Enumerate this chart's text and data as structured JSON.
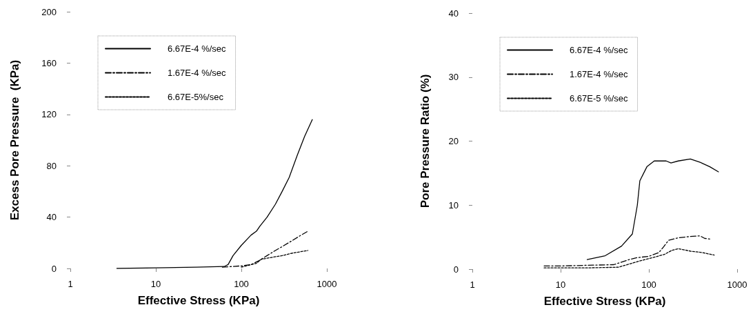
{
  "chart_data": [
    {
      "type": "line",
      "xlabel": "Effective Stress (KPa)",
      "ylabel": "Excess Pore Pressure  (KPa)",
      "log": "x",
      "xlim": [
        1,
        1000
      ],
      "xticks": [
        1,
        10,
        100,
        1000
      ],
      "ylim": [
        0,
        200
      ],
      "yticks": [
        0,
        40,
        80,
        120,
        160,
        200
      ],
      "legend": "top left",
      "grid": false,
      "marker": "none",
      "series": [
        {
          "name": "6.67E-4 %/sec",
          "color": "#000000",
          "line_style": "solid",
          "x": [
            3.5,
            10,
            30,
            63,
            70,
            80,
            100,
            130,
            150,
            165,
            200,
            250,
            300,
            363,
            450,
            550,
            676
          ],
          "values": [
            0,
            0.5,
            1,
            1.5,
            3,
            10,
            18,
            26,
            29,
            33,
            40,
            50,
            60,
            71,
            88,
            103,
            116
          ]
        },
        {
          "name": "1.67E-4 %/sec",
          "color": "#000000",
          "line_style": "dashdot",
          "x": [
            60,
            100,
            130,
            160,
            200,
            250,
            300,
            400,
            500,
            600
          ],
          "values": [
            1,
            2,
            3,
            6,
            10,
            14,
            17,
            22,
            26,
            29
          ]
        },
        {
          "name": "6.67E-5%/sec",
          "color": "#000000",
          "line_style": "dashed",
          "x": [
            100,
            150,
            170,
            200,
            300,
            400,
            600
          ],
          "values": [
            1,
            4,
            7,
            8,
            10,
            12,
            14
          ]
        }
      ]
    },
    {
      "type": "line",
      "xlabel": "Effective Stress (KPa)",
      "ylabel": "Pore Pressure Ratio (%)",
      "log": "x",
      "xlim": [
        1,
        1000
      ],
      "xticks": [
        1,
        10,
        100,
        1000
      ],
      "ylim": [
        0,
        40
      ],
      "yticks": [
        0,
        10,
        20,
        30,
        40
      ],
      "legend": "top left",
      "grid": false,
      "marker": "none",
      "series": [
        {
          "name": "6.67E-4 %/sec",
          "color": "#000000",
          "line_style": "solid",
          "x": [
            20,
            32,
            49,
            65,
            74,
            79,
            95,
            115,
            157,
            178,
            215,
            295,
            380,
            490,
            614
          ],
          "values": [
            1.5,
            2.1,
            3.6,
            5.5,
            10,
            13.8,
            16,
            16.9,
            16.9,
            16.6,
            16.9,
            17.2,
            16.7,
            16,
            15.2
          ]
        },
        {
          "name": "1.67E-4 %/sec",
          "color": "#000000",
          "line_style": "dashdot",
          "x": [
            6.5,
            10,
            20,
            40,
            60,
            74,
            100,
            130,
            147,
            167,
            215,
            295,
            380,
            430,
            500
          ],
          "values": [
            0.5,
            0.5,
            0.6,
            0.7,
            1.5,
            1.8,
            2,
            2.6,
            3.5,
            4.5,
            4.9,
            5.1,
            5.2,
            4.8,
            4.7
          ]
        },
        {
          "name": "6.67E-5 %/sec",
          "color": "#000000",
          "line_style": "dashed",
          "x": [
            6.5,
            20,
            45,
            60,
            80,
            110,
            150,
            180,
            215,
            300,
            400,
            550
          ],
          "values": [
            0.2,
            0.2,
            0.3,
            0.8,
            1.3,
            1.8,
            2.3,
            2.9,
            3.2,
            2.8,
            2.6,
            2.2
          ]
        }
      ]
    }
  ]
}
